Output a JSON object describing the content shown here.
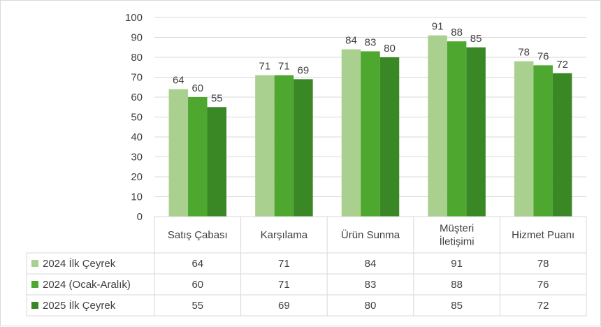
{
  "chart_data": {
    "type": "bar",
    "categories": [
      "Satış Çabası",
      "Karşılama",
      "Ürün Sunma",
      "Müşteri İletişimi",
      "Hizmet Puanı"
    ],
    "series": [
      {
        "name": "2024 İlk Çeyrek",
        "values": [
          64,
          71,
          84,
          91,
          78
        ],
        "color": "#a9d08e"
      },
      {
        "name": "2024 (Ocak-Aralık)",
        "values": [
          60,
          71,
          83,
          88,
          76
        ],
        "color": "#4ea72e"
      },
      {
        "name": "2025 İlk Çeyrek",
        "values": [
          55,
          69,
          80,
          85,
          72
        ],
        "color": "#3a8726"
      }
    ],
    "ylim": [
      0,
      100
    ],
    "yticks": [
      0,
      10,
      20,
      30,
      40,
      50,
      60,
      70,
      80,
      90,
      100
    ],
    "grid": true,
    "data_table": true,
    "legend_placement": "data-table-left"
  }
}
